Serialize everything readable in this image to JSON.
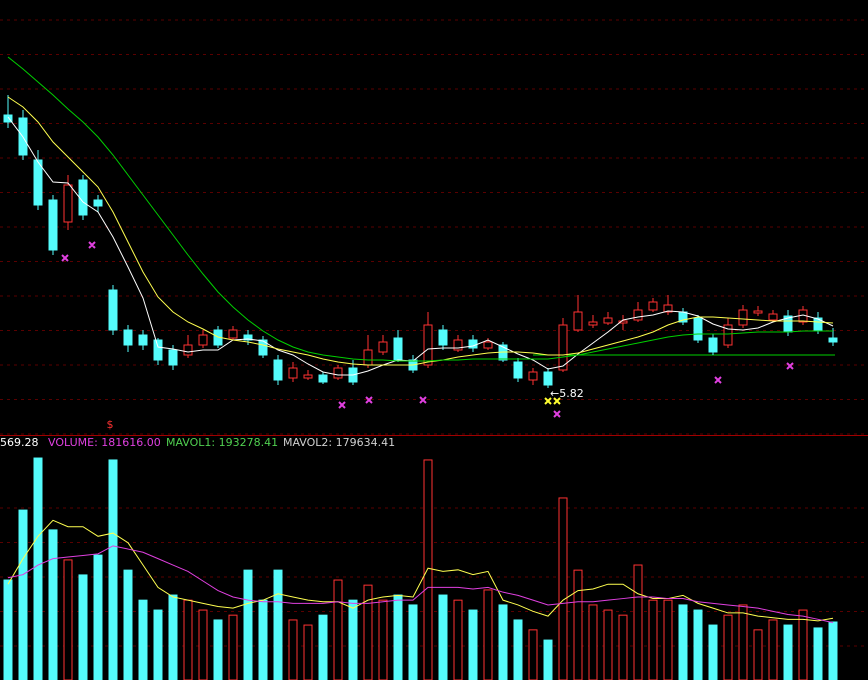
{
  "chart_data": [
    {
      "type": "candlestick",
      "ylim": [
        5.32,
        9.67
      ],
      "up_color": "#ff3232",
      "down_color": "#54fcfc",
      "flat_color": "#ffffff",
      "open": [
        8.52,
        8.49,
        8.07,
        7.67,
        7.45,
        7.87,
        7.67,
        6.77,
        6.37,
        6.32,
        6.27,
        6.17,
        6.12,
        6.22,
        6.37,
        6.29,
        6.32,
        6.27,
        6.07,
        5.89,
        5.89,
        5.92,
        5.89,
        5.99,
        6.02,
        6.15,
        6.29,
        6.07,
        6.02,
        6.37,
        6.17,
        6.27,
        6.19,
        6.22,
        6.05,
        5.87,
        5.95,
        5.97,
        6.37,
        6.42,
        6.44,
        6.44,
        6.47,
        6.57,
        6.55,
        6.55,
        6.49,
        6.29,
        6.22,
        6.42,
        6.54,
        6.47,
        6.51,
        6.45,
        6.49,
        6.29
      ],
      "high": [
        8.72,
        8.57,
        8.17,
        7.72,
        7.92,
        7.92,
        7.72,
        6.82,
        6.42,
        6.37,
        6.29,
        6.22,
        6.32,
        6.37,
        6.41,
        6.41,
        6.37,
        6.31,
        6.12,
        6.05,
        5.97,
        5.95,
        6.02,
        6.07,
        6.32,
        6.32,
        6.37,
        6.12,
        6.55,
        6.42,
        6.32,
        6.32,
        6.29,
        6.25,
        6.09,
        5.99,
        5.99,
        6.49,
        6.72,
        6.52,
        6.55,
        6.52,
        6.65,
        6.69,
        6.72,
        6.59,
        6.52,
        6.33,
        6.49,
        6.62,
        6.61,
        6.57,
        6.57,
        6.61,
        6.55,
        6.39
      ],
      "low": [
        8.39,
        8.07,
        7.57,
        7.12,
        7.37,
        7.47,
        7.55,
        6.32,
        6.15,
        6.17,
        6.02,
        5.97,
        6.09,
        6.19,
        6.19,
        6.27,
        6.22,
        6.09,
        5.82,
        5.85,
        5.87,
        5.83,
        5.87,
        5.82,
        5.99,
        6.12,
        6.05,
        5.94,
        5.99,
        6.17,
        6.15,
        6.15,
        6.17,
        6.05,
        5.85,
        5.82,
        5.79,
        5.95,
        6.35,
        6.39,
        6.42,
        6.37,
        6.45,
        6.55,
        6.52,
        6.42,
        6.24,
        6.12,
        6.19,
        6.39,
        6.51,
        6.45,
        6.31,
        6.42,
        6.33,
        6.21
      ],
      "close": [
        8.45,
        8.12,
        7.62,
        7.17,
        7.82,
        7.52,
        7.61,
        6.37,
        6.22,
        6.22,
        6.07,
        6.02,
        6.22,
        6.32,
        6.22,
        6.37,
        6.27,
        6.12,
        5.87,
        5.99,
        5.92,
        5.85,
        5.99,
        5.85,
        6.17,
        6.25,
        6.07,
        5.97,
        6.42,
        6.22,
        6.27,
        6.19,
        6.25,
        6.07,
        5.89,
        5.95,
        5.82,
        6.42,
        6.55,
        6.45,
        6.49,
        6.46,
        6.57,
        6.65,
        6.62,
        6.45,
        6.27,
        6.15,
        6.42,
        6.57,
        6.56,
        6.53,
        6.35,
        6.57,
        6.37,
        6.25
      ],
      "lines": [
        {
          "color": "#ffffff",
          "values": [
            8.5,
            8.3,
            8.05,
            7.85,
            7.84,
            7.65,
            7.55,
            7.3,
            7.0,
            6.69,
            6.2,
            6.18,
            6.15,
            6.17,
            6.17,
            6.27,
            6.28,
            6.26,
            6.17,
            6.12,
            6.03,
            5.95,
            5.92,
            5.92,
            5.96,
            6.02,
            6.07,
            6.06,
            6.18,
            6.19,
            6.19,
            6.21,
            6.27,
            6.2,
            6.13,
            6.07,
            5.98,
            6.01,
            6.13,
            6.24,
            6.35,
            6.47,
            6.5,
            6.52,
            6.56,
            6.55,
            6.51,
            6.43,
            6.38,
            6.37,
            6.39,
            6.45,
            6.49,
            6.52,
            6.48,
            6.41
          ]
        },
        {
          "color": "#ffff50",
          "values": [
            8.7,
            8.6,
            8.45,
            8.25,
            8.1,
            7.95,
            7.8,
            7.55,
            7.25,
            6.95,
            6.7,
            6.55,
            6.45,
            6.38,
            6.3,
            6.27,
            6.25,
            6.22,
            6.18,
            6.15,
            6.12,
            6.08,
            6.05,
            6.03,
            6.02,
            6.02,
            6.02,
            6.02,
            6.05,
            6.07,
            6.1,
            6.12,
            6.14,
            6.15,
            6.15,
            6.14,
            6.12,
            6.12,
            6.14,
            6.18,
            6.22,
            6.26,
            6.3,
            6.35,
            6.42,
            6.47,
            6.5,
            6.5,
            6.49,
            6.48,
            6.47,
            6.46,
            6.46,
            6.46,
            6.45,
            6.44
          ]
        },
        {
          "color": "#00d000",
          "values": [
            9.1,
            8.98,
            8.85,
            8.72,
            8.58,
            8.45,
            8.3,
            8.12,
            7.92,
            7.72,
            7.52,
            7.32,
            7.12,
            6.93,
            6.75,
            6.6,
            6.47,
            6.36,
            6.27,
            6.2,
            6.15,
            6.12,
            6.1,
            6.08,
            6.07,
            6.07,
            6.06,
            6.06,
            6.06,
            6.07,
            6.07,
            6.08,
            6.08,
            6.08,
            6.08,
            6.08,
            6.08,
            6.1,
            6.12,
            6.15,
            6.18,
            6.21,
            6.24,
            6.27,
            6.3,
            6.32,
            6.33,
            6.33,
            6.33,
            6.34,
            6.35,
            6.35,
            6.35,
            6.36,
            6.36,
            6.36
          ]
        }
      ],
      "hline": {
        "value": 6.12,
        "color": "#00d000"
      },
      "annotation": "←5.82",
      "signal_label": "$"
    },
    {
      "type": "volume",
      "ylim": [
        0,
        764000
      ],
      "header": [
        "569.28",
        "VOLUME: 181616.00",
        "MAVOL1: 193278.41",
        "MAVOL2: 179634.41"
      ],
      "header_colors": [
        "#ffffff",
        "#e040e0",
        "#50d050",
        "#d0d0d0"
      ],
      "values": [
        313000,
        532000,
        695000,
        470000,
        376000,
        329000,
        391000,
        689000,
        344000,
        250000,
        219000,
        266000,
        250000,
        219000,
        188000,
        203000,
        344000,
        250000,
        344000,
        188000,
        172000,
        203000,
        313000,
        250000,
        297000,
        250000,
        266000,
        235000,
        689000,
        266000,
        250000,
        219000,
        282000,
        235000,
        188000,
        157000,
        125000,
        570000,
        344000,
        235000,
        219000,
        203000,
        360000,
        250000,
        250000,
        235000,
        219000,
        172000,
        203000,
        235000,
        157000,
        188000,
        172000,
        219000,
        163000,
        181616
      ],
      "lines": [
        {
          "color": "#ffff50",
          "values": [
            300000,
            380000,
            450000,
            500000,
            480000,
            480000,
            450000,
            460000,
            430000,
            360000,
            290000,
            260000,
            250000,
            240000,
            230000,
            225000,
            240000,
            250000,
            270000,
            260000,
            250000,
            245000,
            245000,
            225000,
            250000,
            260000,
            265000,
            260000,
            350000,
            340000,
            345000,
            330000,
            340000,
            250000,
            235000,
            215000,
            200000,
            250000,
            280000,
            285000,
            300000,
            300000,
            270000,
            255000,
            255000,
            265000,
            240000,
            225000,
            210000,
            210000,
            200000,
            195000,
            190000,
            190000,
            185000,
            193278.41
          ]
        },
        {
          "color": "#e040e0",
          "values": [
            320000,
            330000,
            360000,
            380000,
            385000,
            390000,
            395000,
            420000,
            410000,
            400000,
            380000,
            360000,
            340000,
            310000,
            280000,
            260000,
            250000,
            245000,
            245000,
            240000,
            240000,
            240000,
            245000,
            240000,
            240000,
            245000,
            250000,
            250000,
            290000,
            290000,
            290000,
            285000,
            290000,
            275000,
            265000,
            250000,
            235000,
            240000,
            245000,
            245000,
            250000,
            255000,
            260000,
            260000,
            255000,
            255000,
            245000,
            240000,
            235000,
            230000,
            225000,
            215000,
            205000,
            200000,
            190000,
            179634.41
          ]
        }
      ]
    }
  ]
}
